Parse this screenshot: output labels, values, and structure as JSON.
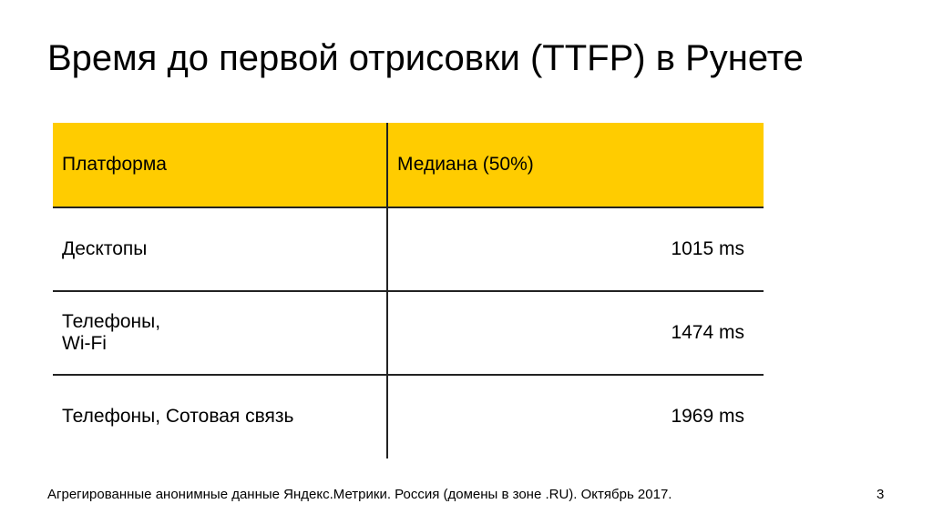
{
  "slide": {
    "title": "Время до первой отрисовки (TTFP) в Рунете",
    "table": {
      "header": [
        "Платформа",
        "Медиана (50%)"
      ],
      "rows": [
        [
          "Десктопы",
          "1015 ms"
        ],
        [
          "Телефоны,\nWi-Fi",
          "1474 ms"
        ],
        [
          "Телефоны, Сотовая связь",
          "1969 ms"
        ]
      ]
    },
    "footnote": "Агрегированные анонимные данные Яндекс.Метрики. Россия (домены в зоне .RU). Октябрь 2017.",
    "page_number": "3"
  }
}
